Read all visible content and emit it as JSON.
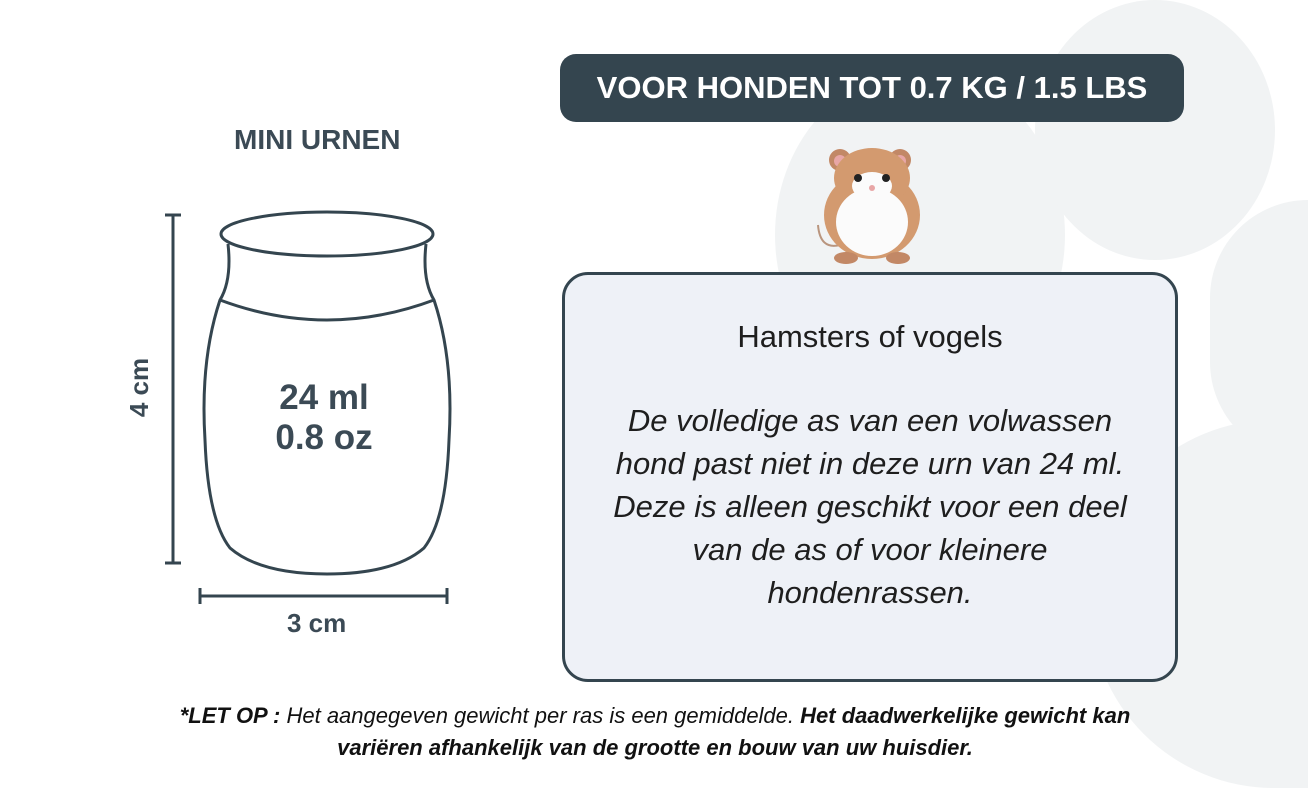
{
  "badge": {
    "text": "VOOR HONDEN TOT 0.7 KG / 1.5 LBS"
  },
  "product": {
    "title": "MINI URNEN",
    "volume_ml": "24 ml",
    "volume_oz": "0.8 oz",
    "height": "4 cm",
    "width": "3 cm"
  },
  "card": {
    "title": "Hamsters of vogels",
    "body": "De volledige as van een volwassen hond past niet in deze urn van 24 ml. Deze is alleen geschikt voor een deel van de as of voor kleinere hondenrassen."
  },
  "note": {
    "label": "*LET OP :",
    "text": " Het aangegeven gewicht per ras is een gemiddelde. ",
    "bold": "Het daadwerkelijke gewicht kan variëren afhankelijk van de grootte en bouw van uw huisdier."
  },
  "icons": {
    "animal": "hamster-illustration",
    "background": "paw-print"
  },
  "colors": {
    "badge": "#34454f",
    "card_bg": "#eef1f7",
    "text": "#2d3b45"
  }
}
